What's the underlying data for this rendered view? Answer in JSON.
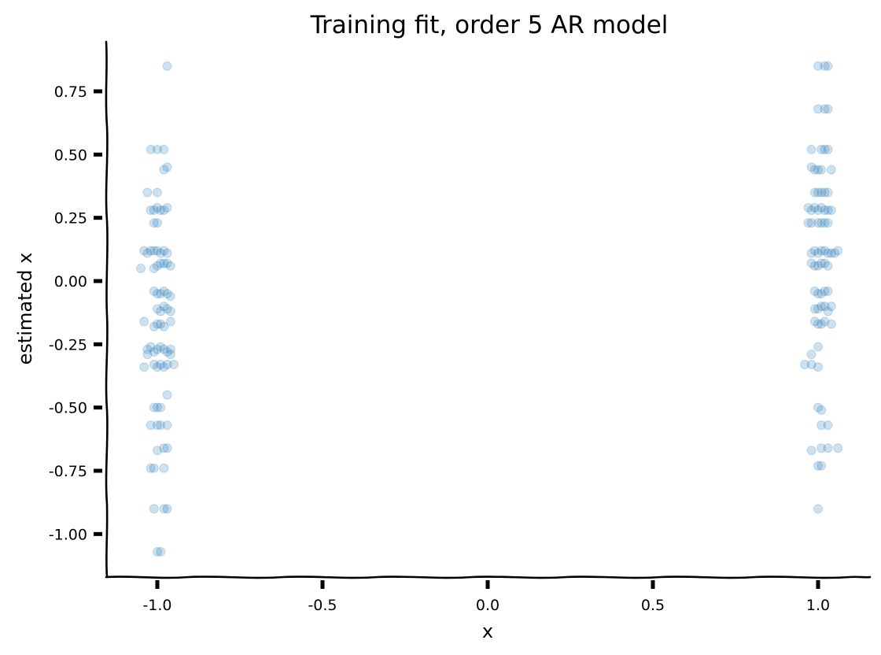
{
  "chart_data": {
    "type": "scatter",
    "title": "Training fit, order 5 AR model",
    "xlabel": "x",
    "ylabel": "estimated x",
    "xlim": [
      -1.15,
      1.15
    ],
    "ylim": [
      -1.15,
      0.95
    ],
    "xticks": [
      -1.0,
      -0.5,
      0.0,
      0.5,
      1.0
    ],
    "xtick_labels": [
      "-1.0",
      "-0.5",
      "0.0",
      "0.5",
      "1.0"
    ],
    "yticks": [
      -1.0,
      -0.75,
      -0.5,
      -0.25,
      0.0,
      0.25,
      0.5,
      0.75
    ],
    "ytick_labels": [
      "-1.00",
      "-0.75",
      "-0.50",
      "-0.25",
      "0.00",
      "0.25",
      "0.50",
      "0.75"
    ],
    "grid": false,
    "legend": "none",
    "marker_color": "#1f77b4",
    "marker_alpha": 0.22,
    "series": [
      {
        "points": [
          [
            -0.97,
            0.85
          ],
          [
            -1.02,
            0.52
          ],
          [
            -1.0,
            0.52
          ],
          [
            -0.98,
            0.52
          ],
          [
            -0.98,
            0.44
          ],
          [
            -0.97,
            0.45
          ],
          [
            -1.03,
            0.35
          ],
          [
            -1.0,
            0.35
          ],
          [
            -1.02,
            0.28
          ],
          [
            -1.01,
            0.28
          ],
          [
            -1.0,
            0.29
          ],
          [
            -0.99,
            0.28
          ],
          [
            -0.98,
            0.28
          ],
          [
            -0.97,
            0.29
          ],
          [
            -1.01,
            0.23
          ],
          [
            -1.0,
            0.23
          ],
          [
            -1.04,
            0.12
          ],
          [
            -1.03,
            0.11
          ],
          [
            -1.02,
            0.12
          ],
          [
            -1.01,
            0.12
          ],
          [
            -1.0,
            0.12
          ],
          [
            -0.99,
            0.11
          ],
          [
            -0.98,
            0.12
          ],
          [
            -0.97,
            0.11
          ],
          [
            -1.05,
            0.05
          ],
          [
            -1.01,
            0.05
          ],
          [
            -1.0,
            0.06
          ],
          [
            -0.99,
            0.07
          ],
          [
            -0.98,
            0.07
          ],
          [
            -0.97,
            0.07
          ],
          [
            -0.96,
            0.06
          ],
          [
            -1.01,
            -0.04
          ],
          [
            -1.0,
            -0.05
          ],
          [
            -0.99,
            -0.05
          ],
          [
            -0.98,
            -0.04
          ],
          [
            -0.97,
            -0.05
          ],
          [
            -0.96,
            -0.06
          ],
          [
            -1.0,
            -0.11
          ],
          [
            -0.99,
            -0.12
          ],
          [
            -0.98,
            -0.1
          ],
          [
            -0.97,
            -0.11
          ],
          [
            -0.96,
            -0.12
          ],
          [
            -1.04,
            -0.16
          ],
          [
            -1.01,
            -0.18
          ],
          [
            -1.0,
            -0.17
          ],
          [
            -0.99,
            -0.17
          ],
          [
            -0.98,
            -0.18
          ],
          [
            -0.96,
            -0.16
          ],
          [
            -1.03,
            -0.27
          ],
          [
            -1.02,
            -0.26
          ],
          [
            -1.01,
            -0.28
          ],
          [
            -1.0,
            -0.27
          ],
          [
            -0.99,
            -0.26
          ],
          [
            -0.98,
            -0.27
          ],
          [
            -0.97,
            -0.28
          ],
          [
            -0.96,
            -0.27
          ],
          [
            -1.03,
            -0.29
          ],
          [
            -0.96,
            -0.29
          ],
          [
            -1.04,
            -0.34
          ],
          [
            -1.01,
            -0.33
          ],
          [
            -1.0,
            -0.34
          ],
          [
            -0.99,
            -0.33
          ],
          [
            -0.98,
            -0.34
          ],
          [
            -0.97,
            -0.33
          ],
          [
            -0.95,
            -0.33
          ],
          [
            -0.97,
            -0.45
          ],
          [
            -1.01,
            -0.5
          ],
          [
            -1.0,
            -0.5
          ],
          [
            -0.99,
            -0.5
          ],
          [
            -1.02,
            -0.57
          ],
          [
            -1.0,
            -0.57
          ],
          [
            -0.99,
            -0.57
          ],
          [
            -0.97,
            -0.57
          ],
          [
            -1.0,
            -0.67
          ],
          [
            -0.98,
            -0.66
          ],
          [
            -0.97,
            -0.66
          ],
          [
            -1.02,
            -0.74
          ],
          [
            -1.01,
            -0.74
          ],
          [
            -0.98,
            -0.74
          ],
          [
            -1.01,
            -0.9
          ],
          [
            -0.98,
            -0.9
          ],
          [
            -0.97,
            -0.9
          ],
          [
            -1.0,
            -1.07
          ],
          [
            -0.99,
            -1.07
          ],
          [
            1.0,
            0.85
          ],
          [
            1.02,
            0.85
          ],
          [
            1.03,
            0.85
          ],
          [
            1.0,
            0.68
          ],
          [
            1.02,
            0.68
          ],
          [
            1.03,
            0.68
          ],
          [
            0.98,
            0.52
          ],
          [
            1.01,
            0.52
          ],
          [
            1.02,
            0.52
          ],
          [
            1.03,
            0.52
          ],
          [
            0.98,
            0.45
          ],
          [
            0.99,
            0.44
          ],
          [
            1.0,
            0.44
          ],
          [
            1.01,
            0.44
          ],
          [
            1.04,
            0.44
          ],
          [
            0.99,
            0.35
          ],
          [
            1.0,
            0.35
          ],
          [
            1.01,
            0.35
          ],
          [
            1.02,
            0.35
          ],
          [
            1.03,
            0.35
          ],
          [
            0.97,
            0.29
          ],
          [
            0.98,
            0.28
          ],
          [
            0.99,
            0.29
          ],
          [
            1.0,
            0.28
          ],
          [
            1.01,
            0.29
          ],
          [
            1.02,
            0.28
          ],
          [
            1.03,
            0.28
          ],
          [
            1.04,
            0.28
          ],
          [
            0.97,
            0.23
          ],
          [
            0.98,
            0.23
          ],
          [
            1.0,
            0.23
          ],
          [
            1.01,
            0.23
          ],
          [
            1.02,
            0.23
          ],
          [
            1.03,
            0.23
          ],
          [
            0.98,
            0.11
          ],
          [
            0.99,
            0.12
          ],
          [
            1.0,
            0.11
          ],
          [
            1.01,
            0.12
          ],
          [
            1.02,
            0.12
          ],
          [
            1.03,
            0.11
          ],
          [
            1.04,
            0.11
          ],
          [
            1.05,
            0.11
          ],
          [
            1.06,
            0.12
          ],
          [
            0.98,
            0.07
          ],
          [
            0.99,
            0.06
          ],
          [
            1.0,
            0.06
          ],
          [
            1.01,
            0.07
          ],
          [
            1.02,
            0.07
          ],
          [
            1.03,
            0.06
          ],
          [
            0.99,
            -0.04
          ],
          [
            1.0,
            -0.05
          ],
          [
            1.01,
            -0.05
          ],
          [
            1.02,
            -0.04
          ],
          [
            1.03,
            -0.04
          ],
          [
            0.99,
            -0.11
          ],
          [
            1.0,
            -0.11
          ],
          [
            1.01,
            -0.1
          ],
          [
            1.02,
            -0.1
          ],
          [
            1.03,
            -0.12
          ],
          [
            1.04,
            -0.1
          ],
          [
            0.99,
            -0.16
          ],
          [
            1.0,
            -0.17
          ],
          [
            1.01,
            -0.17
          ],
          [
            1.02,
            -0.16
          ],
          [
            1.04,
            -0.17
          ],
          [
            0.98,
            -0.29
          ],
          [
            1.0,
            -0.26
          ],
          [
            0.96,
            -0.33
          ],
          [
            0.98,
            -0.33
          ],
          [
            1.0,
            -0.34
          ],
          [
            1.0,
            -0.5
          ],
          [
            1.01,
            -0.51
          ],
          [
            1.01,
            -0.57
          ],
          [
            1.03,
            -0.57
          ],
          [
            0.98,
            -0.67
          ],
          [
            1.01,
            -0.66
          ],
          [
            1.03,
            -0.66
          ],
          [
            1.06,
            -0.66
          ],
          [
            1.0,
            -0.73
          ],
          [
            1.01,
            -0.73
          ],
          [
            1.0,
            -0.9
          ]
        ]
      }
    ]
  }
}
